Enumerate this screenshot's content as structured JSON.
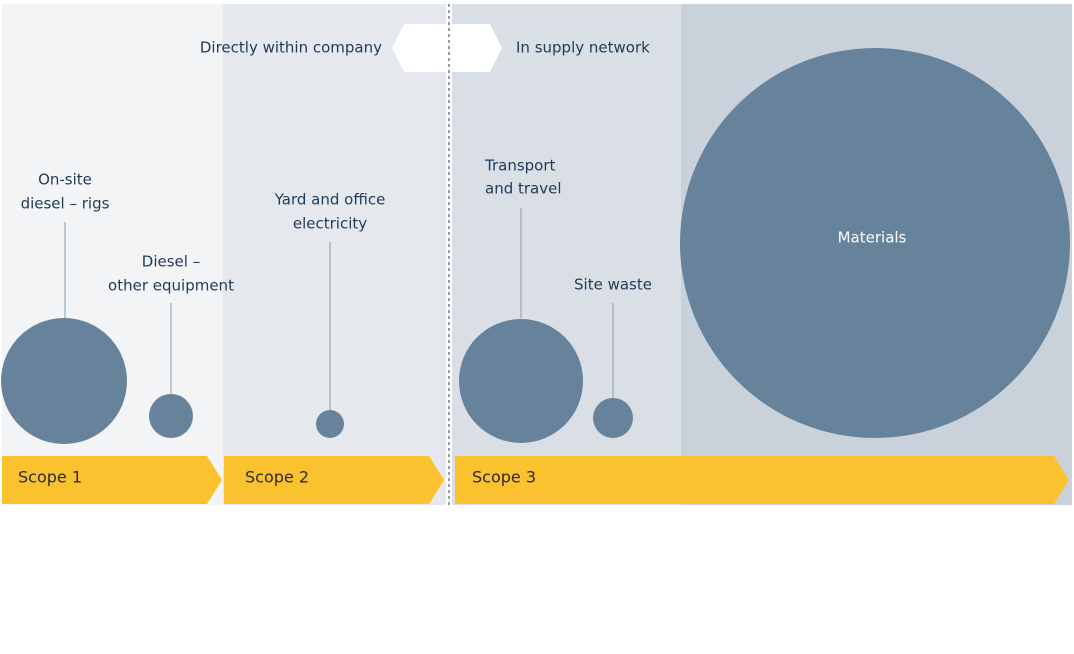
{
  "boundary": {
    "left": "Directly within company",
    "right": "In supply network"
  },
  "scopes": [
    "Scope 1",
    "Scope 2",
    "Scope 3"
  ],
  "nodes": [
    {
      "label": [
        "On-site",
        "diesel – rigs"
      ]
    },
    {
      "label": [
        "Diesel –",
        "other equipment"
      ]
    },
    {
      "label": [
        "Yard and office",
        "electricity"
      ]
    },
    {
      "label": [
        "Transport",
        "and travel"
      ]
    },
    {
      "label": [
        "Site waste"
      ]
    },
    {
      "label": [
        "Materials"
      ]
    }
  ]
}
